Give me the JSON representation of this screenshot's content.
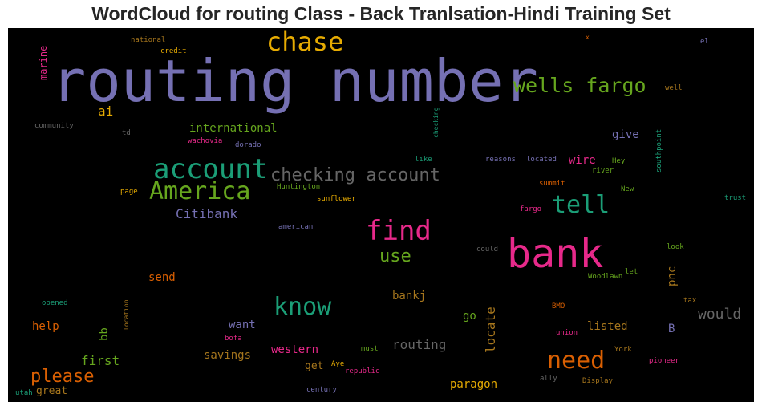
{
  "chart_data": {
    "type": "wordcloud",
    "title": "WordCloud for routing Class - Back Tranlsation-Hindi Training Set",
    "background": "#000000",
    "words": [
      {
        "text": "routing number",
        "size": 72,
        "color": "#7570b3"
      },
      {
        "text": "bank",
        "size": 50,
        "color": "#e7298a"
      },
      {
        "text": "chase",
        "size": 32,
        "color": "#e6ab02"
      },
      {
        "text": "account",
        "size": 34,
        "color": "#1b9e77"
      },
      {
        "text": "America",
        "size": 30,
        "color": "#66a61e"
      },
      {
        "text": "find",
        "size": 34,
        "color": "#e7298a"
      },
      {
        "text": "tell",
        "size": 30,
        "color": "#1b9e77"
      },
      {
        "text": "know",
        "size": 30,
        "color": "#1b9e77"
      },
      {
        "text": "need",
        "size": 30,
        "color": "#d95f02"
      },
      {
        "text": "wells fargo",
        "size": 25,
        "color": "#66a61e"
      },
      {
        "text": "checking account",
        "size": 22,
        "color": "#666666"
      },
      {
        "text": "please",
        "size": 22,
        "color": "#d95f02"
      },
      {
        "text": "use",
        "size": 22,
        "color": "#66a61e"
      },
      {
        "text": "Citibank",
        "size": 16,
        "color": "#7570b3"
      },
      {
        "text": "would",
        "size": 18,
        "color": "#666666"
      },
      {
        "text": "routing",
        "size": 16,
        "color": "#666666"
      },
      {
        "text": "locate",
        "size": 16,
        "color": "#a6761d"
      },
      {
        "text": "international",
        "size": 14,
        "color": "#66a61e"
      },
      {
        "text": "ai",
        "size": 16,
        "color": "#e6ab02"
      },
      {
        "text": "give",
        "size": 14,
        "color": "#7570b3"
      },
      {
        "text": "wire",
        "size": 14,
        "color": "#e7298a"
      },
      {
        "text": "send",
        "size": 14,
        "color": "#d95f02"
      },
      {
        "text": "pnc",
        "size": 14,
        "color": "#a6761d"
      },
      {
        "text": "bankj",
        "size": 14,
        "color": "#a6761d"
      },
      {
        "text": "go",
        "size": 14,
        "color": "#66a61e"
      },
      {
        "text": "listed",
        "size": 14,
        "color": "#a6761d"
      },
      {
        "text": "B",
        "size": 14,
        "color": "#7570b3"
      },
      {
        "text": "want",
        "size": 14,
        "color": "#7570b3"
      },
      {
        "text": "help",
        "size": 14,
        "color": "#d95f02"
      },
      {
        "text": "bb",
        "size": 14,
        "color": "#66a61e"
      },
      {
        "text": "first",
        "size": 16,
        "color": "#66a61e"
      },
      {
        "text": "savings",
        "size": 14,
        "color": "#a6761d"
      },
      {
        "text": "western",
        "size": 14,
        "color": "#e7298a"
      },
      {
        "text": "get",
        "size": 13,
        "color": "#a6761d"
      },
      {
        "text": "paragon",
        "size": 14,
        "color": "#e6ab02"
      },
      {
        "text": "great",
        "size": 13,
        "color": "#a6761d"
      },
      {
        "text": "marine",
        "size": 12,
        "color": "#e7298a"
      },
      {
        "text": "national",
        "size": 9,
        "color": "#a6761d"
      },
      {
        "text": "credit",
        "size": 9,
        "color": "#e6ab02"
      },
      {
        "text": "community",
        "size": 9,
        "color": "#666666"
      },
      {
        "text": "td",
        "size": 9,
        "color": "#666666"
      },
      {
        "text": "wachovia",
        "size": 9,
        "color": "#e7298a"
      },
      {
        "text": "dorado",
        "size": 9,
        "color": "#7570b3"
      },
      {
        "text": "checking",
        "size": 8,
        "color": "#1b9e77"
      },
      {
        "text": "like",
        "size": 9,
        "color": "#1b9e77"
      },
      {
        "text": "reasons",
        "size": 9,
        "color": "#7570b3"
      },
      {
        "text": "located",
        "size": 9,
        "color": "#7570b3"
      },
      {
        "text": "Hey",
        "size": 9,
        "color": "#66a61e"
      },
      {
        "text": "river",
        "size": 9,
        "color": "#66a61e"
      },
      {
        "text": "southpoint",
        "size": 9,
        "color": "#1b9e77"
      },
      {
        "text": "summit",
        "size": 9,
        "color": "#d95f02"
      },
      {
        "text": "New",
        "size": 9,
        "color": "#66a61e"
      },
      {
        "text": "trust",
        "size": 9,
        "color": "#1b9e77"
      },
      {
        "text": "page",
        "size": 9,
        "color": "#e6ab02"
      },
      {
        "text": "Huntington",
        "size": 9,
        "color": "#66a61e"
      },
      {
        "text": "sunflower",
        "size": 9,
        "color": "#e6ab02"
      },
      {
        "text": "fargo",
        "size": 9,
        "color": "#e7298a"
      },
      {
        "text": "american",
        "size": 9,
        "color": "#7570b3"
      },
      {
        "text": "could",
        "size": 9,
        "color": "#666666"
      },
      {
        "text": "look",
        "size": 9,
        "color": "#66a61e"
      },
      {
        "text": "let",
        "size": 9,
        "color": "#66a61e"
      },
      {
        "text": "Woodlawn",
        "size": 9,
        "color": "#66a61e"
      },
      {
        "text": "opened",
        "size": 9,
        "color": "#1b9e77"
      },
      {
        "text": "location",
        "size": 8,
        "color": "#a6761d"
      },
      {
        "text": "BMO",
        "size": 9,
        "color": "#d95f02"
      },
      {
        "text": "tax",
        "size": 9,
        "color": "#a6761d"
      },
      {
        "text": "bofa",
        "size": 9,
        "color": "#e7298a"
      },
      {
        "text": "union",
        "size": 9,
        "color": "#e7298a"
      },
      {
        "text": "must",
        "size": 9,
        "color": "#66a61e"
      },
      {
        "text": "Aye",
        "size": 9,
        "color": "#e6ab02"
      },
      {
        "text": "republic",
        "size": 9,
        "color": "#e7298a"
      },
      {
        "text": "York",
        "size": 9,
        "color": "#a6761d"
      },
      {
        "text": "pioneer",
        "size": 9,
        "color": "#e7298a"
      },
      {
        "text": "ally",
        "size": 9,
        "color": "#666666"
      },
      {
        "text": "Display",
        "size": 9,
        "color": "#a6761d"
      },
      {
        "text": "century",
        "size": 9,
        "color": "#7570b3"
      },
      {
        "text": "utah",
        "size": 9,
        "color": "#1b9e77"
      },
      {
        "text": "x",
        "size": 8,
        "color": "#d95f02"
      },
      {
        "text": "el",
        "size": 9,
        "color": "#7570b3"
      },
      {
        "text": "well",
        "size": 9,
        "color": "#a6761d"
      }
    ]
  }
}
